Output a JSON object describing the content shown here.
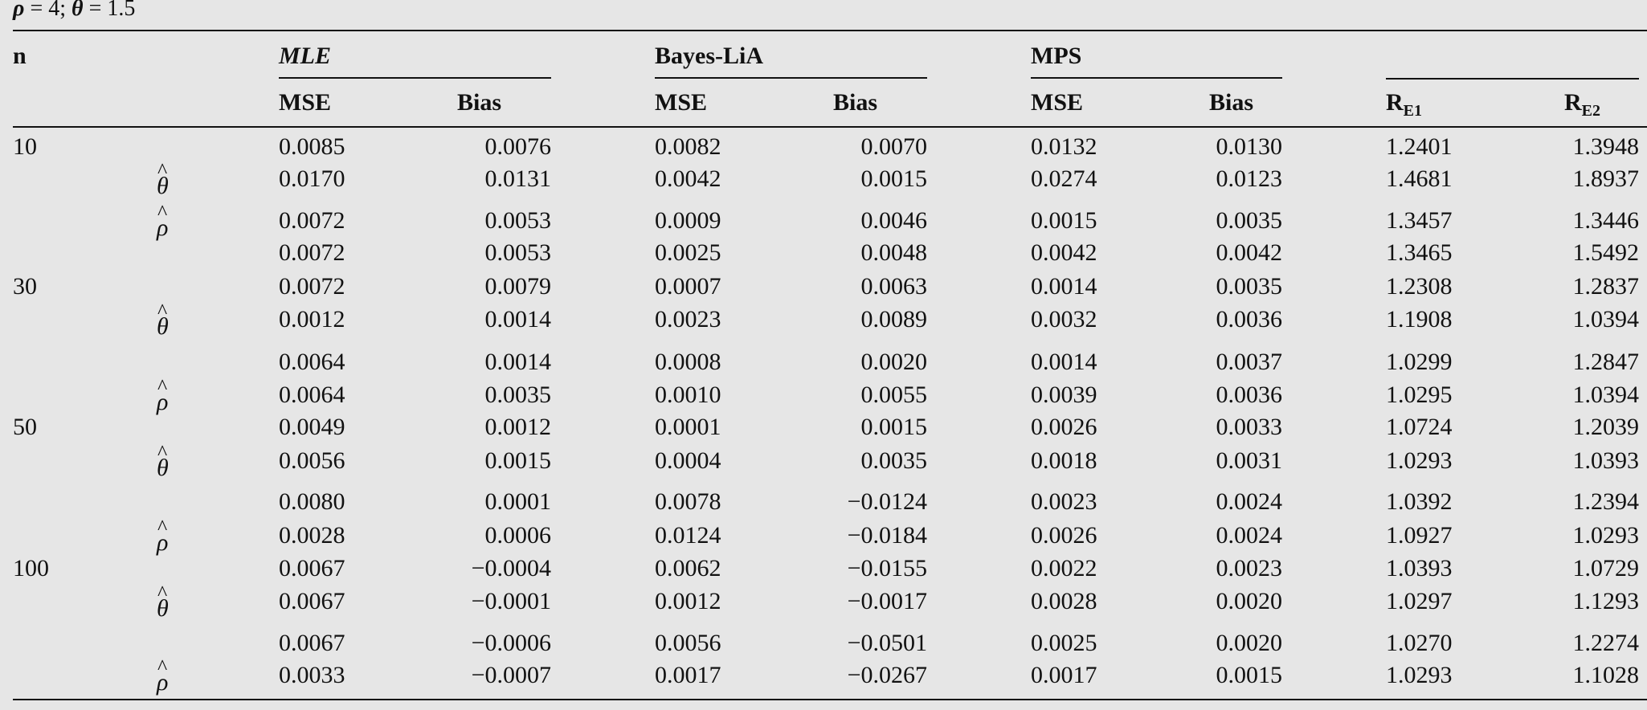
{
  "caption": {
    "rho_label": "ρ",
    "rho_value": " = 4; ",
    "theta_label": "θ",
    "theta_value": " = 1.5"
  },
  "header": {
    "n": "n",
    "groups": [
      "MLE",
      "Bayes-LiA",
      "MPS"
    ],
    "sub": [
      "MSE",
      "Bias",
      "MSE",
      "Bias",
      "MSE",
      "Bias"
    ],
    "re1": "R",
    "re1_sub": "E1",
    "re2": "R",
    "re2_sub": "E2"
  },
  "symbols": {
    "theta": "θ",
    "rho": "ρ",
    "hat": "^"
  },
  "rows": [
    {
      "n": "10",
      "param": "",
      "v": [
        "0.0085",
        "0.0076",
        "0.0082",
        "0.0070",
        "0.0132",
        "0.0130",
        "1.2401",
        "1.3948"
      ]
    },
    {
      "n": "",
      "param": "theta",
      "v": [
        "0.0170",
        "0.0131",
        "0.0042",
        "0.0015",
        "0.0274",
        "0.0123",
        "1.4681",
        "1.8937"
      ]
    },
    {
      "n": "",
      "param": "rho",
      "v": [
        "0.0072",
        "0.0053",
        "0.0009",
        "0.0046",
        "0.0015",
        "0.0035",
        "1.3457",
        "1.3446"
      ]
    },
    {
      "n": "",
      "param": "",
      "v": [
        "0.0072",
        "0.0053",
        "0.0025",
        "0.0048",
        "0.0042",
        "0.0042",
        "1.3465",
        "1.5492"
      ]
    },
    {
      "n": "30",
      "param": "",
      "v": [
        "0.0072",
        "0.0079",
        "0.0007",
        "0.0063",
        "0.0014",
        "0.0035",
        "1.2308",
        "1.2837"
      ]
    },
    {
      "n": "",
      "param": "theta",
      "v": [
        "0.0012",
        "0.0014",
        "0.0023",
        "0.0089",
        "0.0032",
        "0.0036",
        "1.1908",
        "1.0394"
      ]
    },
    {
      "n": "",
      "param": "",
      "v": [
        "0.0064",
        "0.0014",
        "0.0008",
        "0.0020",
        "0.0014",
        "0.0037",
        "1.0299",
        "1.2847"
      ]
    },
    {
      "n": "",
      "param": "rho",
      "v": [
        "0.0064",
        "0.0035",
        "0.0010",
        "0.0055",
        "0.0039",
        "0.0036",
        "1.0295",
        "1.0394"
      ]
    },
    {
      "n": "50",
      "param": "",
      "v": [
        "0.0049",
        "0.0012",
        "0.0001",
        "0.0015",
        "0.0026",
        "0.0033",
        "1.0724",
        "1.2039"
      ]
    },
    {
      "n": "",
      "param": "theta",
      "v": [
        "0.0056",
        "0.0015",
        "0.0004",
        "0.0035",
        "0.0018",
        "0.0031",
        "1.0293",
        "1.0393"
      ]
    },
    {
      "n": "",
      "param": "",
      "v": [
        "0.0080",
        "0.0001",
        "0.0078",
        "−0.0124",
        "0.0023",
        "0.0024",
        "1.0392",
        "1.2394"
      ]
    },
    {
      "n": "",
      "param": "rho",
      "v": [
        "0.0028",
        "0.0006",
        "0.0124",
        "−0.0184",
        "0.0026",
        "0.0024",
        "1.0927",
        "1.0293"
      ]
    },
    {
      "n": "100",
      "param": "",
      "v": [
        "0.0067",
        "−0.0004",
        "0.0062",
        "−0.0155",
        "0.0022",
        "0.0023",
        "1.0393",
        "1.0729"
      ]
    },
    {
      "n": "",
      "param": "theta",
      "v": [
        "0.0067",
        "−0.0001",
        "0.0012",
        "−0.0017",
        "0.0028",
        "0.0020",
        "1.0297",
        "1.1293"
      ]
    },
    {
      "n": "",
      "param": "",
      "v": [
        "0.0067",
        "−0.0006",
        "0.0056",
        "−0.0501",
        "0.0025",
        "0.0020",
        "1.0270",
        "1.2274"
      ]
    },
    {
      "n": "",
      "param": "rho",
      "v": [
        "0.0033",
        "−0.0007",
        "0.0017",
        "−0.0267",
        "0.0017",
        "0.0015",
        "1.0293",
        "1.1028"
      ]
    }
  ]
}
